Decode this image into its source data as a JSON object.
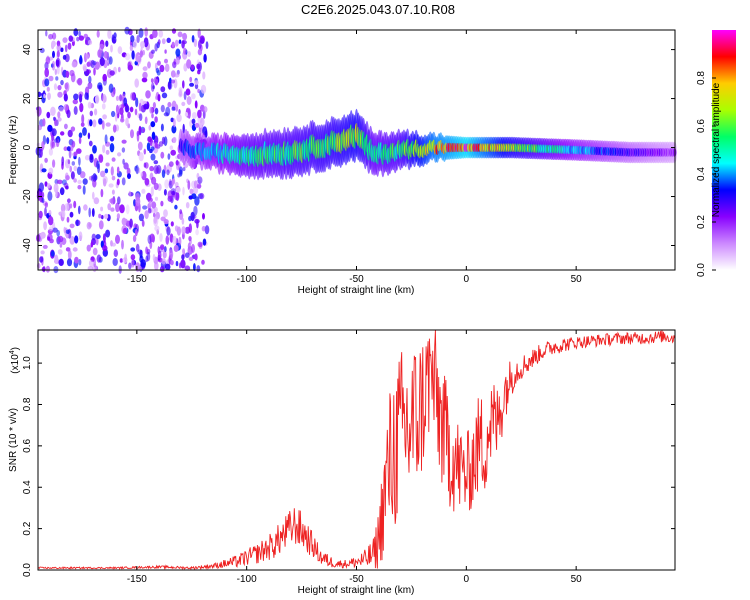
{
  "title": "C2E6.2025.043.07.10.R08",
  "chart_data": [
    {
      "type": "heatmap",
      "xlabel": "Height of straight line (km)",
      "ylabel": "Frequency (Hz)",
      "xlim": [
        -195,
        95
      ],
      "ylim": [
        -50,
        48
      ],
      "x_ticks": [
        -150,
        -100,
        -50,
        0,
        50
      ],
      "y_ticks": [
        -40,
        -20,
        0,
        20,
        40
      ],
      "colorbar": {
        "label": "Normalized spectral amplitude",
        "range": [
          0,
          1
        ],
        "ticks": [
          "0.0",
          "0.2",
          "0.4",
          "0.6",
          "0.8"
        ],
        "tick_values": [
          0,
          0.2,
          0.4,
          0.6,
          0.8
        ],
        "colors": [
          "#ffffff",
          "#cc88ff",
          "#8800ff",
          "#0000ff",
          "#00ffff",
          "#00ff66",
          "#aaff00",
          "#ffcc00",
          "#ff0000",
          "#ff00ff"
        ]
      },
      "noise_region_x": [
        -195,
        -118
      ],
      "band": [
        {
          "x": -130,
          "f": 0,
          "width": 6,
          "amp": 0.35
        },
        {
          "x": -118,
          "f": -2,
          "width": 6,
          "amp": 0.45
        },
        {
          "x": -100,
          "f": -3,
          "width": 8,
          "amp": 0.55
        },
        {
          "x": -80,
          "f": -2,
          "width": 9,
          "amp": 0.6
        },
        {
          "x": -60,
          "f": 2,
          "width": 9,
          "amp": 0.65
        },
        {
          "x": -50,
          "f": 5,
          "width": 9,
          "amp": 0.7
        },
        {
          "x": -42,
          "f": -3,
          "width": 8,
          "amp": 0.55
        },
        {
          "x": -30,
          "f": -1,
          "width": 7,
          "amp": 0.6
        },
        {
          "x": -15,
          "f": 0,
          "width": 5,
          "amp": 0.85
        },
        {
          "x": 0,
          "f": 0,
          "width": 4,
          "amp": 0.95
        },
        {
          "x": 20,
          "f": 0,
          "width": 4,
          "amp": 0.7
        },
        {
          "x": 50,
          "f": -1,
          "width": 4,
          "amp": 0.45
        },
        {
          "x": 75,
          "f": -2,
          "width": 4,
          "amp": 0.3
        },
        {
          "x": 95,
          "f": -2,
          "width": 4,
          "amp": 0.2
        }
      ]
    },
    {
      "type": "line",
      "xlabel": "Height of straight line (km)",
      "ylabel": "SNR (10 * v/v)",
      "y_multiplier": "(x10",
      "y_multiplier_exp": "4",
      "xlim": [
        -195,
        95
      ],
      "ylim": [
        0,
        1.16
      ],
      "x_ticks": [
        -150,
        -100,
        -50,
        0,
        50
      ],
      "y_ticks": [
        "0.0",
        "0.2",
        "0.4",
        "0.6",
        "0.8",
        "1.0"
      ],
      "y_tick_values": [
        0,
        0.2,
        0.4,
        0.6,
        0.8,
        1.0
      ],
      "series": [
        {
          "color": "#ee2222",
          "x": [
            -195,
            -180,
            -160,
            -140,
            -125,
            -115,
            -105,
            -95,
            -88,
            -82,
            -78,
            -74,
            -70,
            -66,
            -62,
            -58,
            -54,
            -50,
            -46,
            -42,
            -40,
            -38,
            -36,
            -34,
            -32,
            -30,
            -28,
            -26,
            -24,
            -22,
            -20,
            -18,
            -16,
            -14,
            -12,
            -10,
            -8,
            -6,
            -4,
            -2,
            0,
            2,
            4,
            6,
            8,
            10,
            12,
            14,
            16,
            18,
            20,
            22,
            25,
            30,
            35,
            40,
            50,
            60,
            70,
            80,
            90,
            95
          ],
          "y": [
            0.01,
            0.01,
            0.01,
            0.015,
            0.01,
            0.02,
            0.04,
            0.08,
            0.12,
            0.18,
            0.22,
            0.18,
            0.12,
            0.06,
            0.04,
            0.03,
            0.03,
            0.04,
            0.05,
            0.08,
            0.15,
            0.3,
            0.45,
            0.55,
            0.6,
            0.65,
            0.7,
            0.68,
            0.72,
            0.75,
            0.8,
            0.9,
            0.95,
            0.85,
            0.75,
            0.65,
            0.6,
            0.55,
            0.5,
            0.48,
            0.45,
            0.5,
            0.55,
            0.62,
            0.6,
            0.68,
            0.72,
            0.7,
            0.8,
            0.88,
            0.92,
            0.96,
            0.98,
            1.02,
            1.06,
            1.08,
            1.1,
            1.11,
            1.12,
            1.12,
            1.13,
            1.12
          ],
          "noise": [
            0.004,
            0.004,
            0.004,
            0.006,
            0.006,
            0.012,
            0.03,
            0.05,
            0.07,
            0.09,
            0.1,
            0.09,
            0.06,
            0.04,
            0.03,
            0.02,
            0.02,
            0.03,
            0.05,
            0.08,
            0.15,
            0.25,
            0.35,
            0.4,
            0.42,
            0.42,
            0.4,
            0.42,
            0.4,
            0.38,
            0.36,
            0.32,
            0.3,
            0.32,
            0.34,
            0.3,
            0.3,
            0.28,
            0.25,
            0.22,
            0.2,
            0.22,
            0.24,
            0.25,
            0.26,
            0.25,
            0.22,
            0.2,
            0.18,
            0.14,
            0.1,
            0.08,
            0.06,
            0.05,
            0.04,
            0.04,
            0.03,
            0.03,
            0.03,
            0.03,
            0.03,
            0.03
          ]
        }
      ]
    }
  ]
}
